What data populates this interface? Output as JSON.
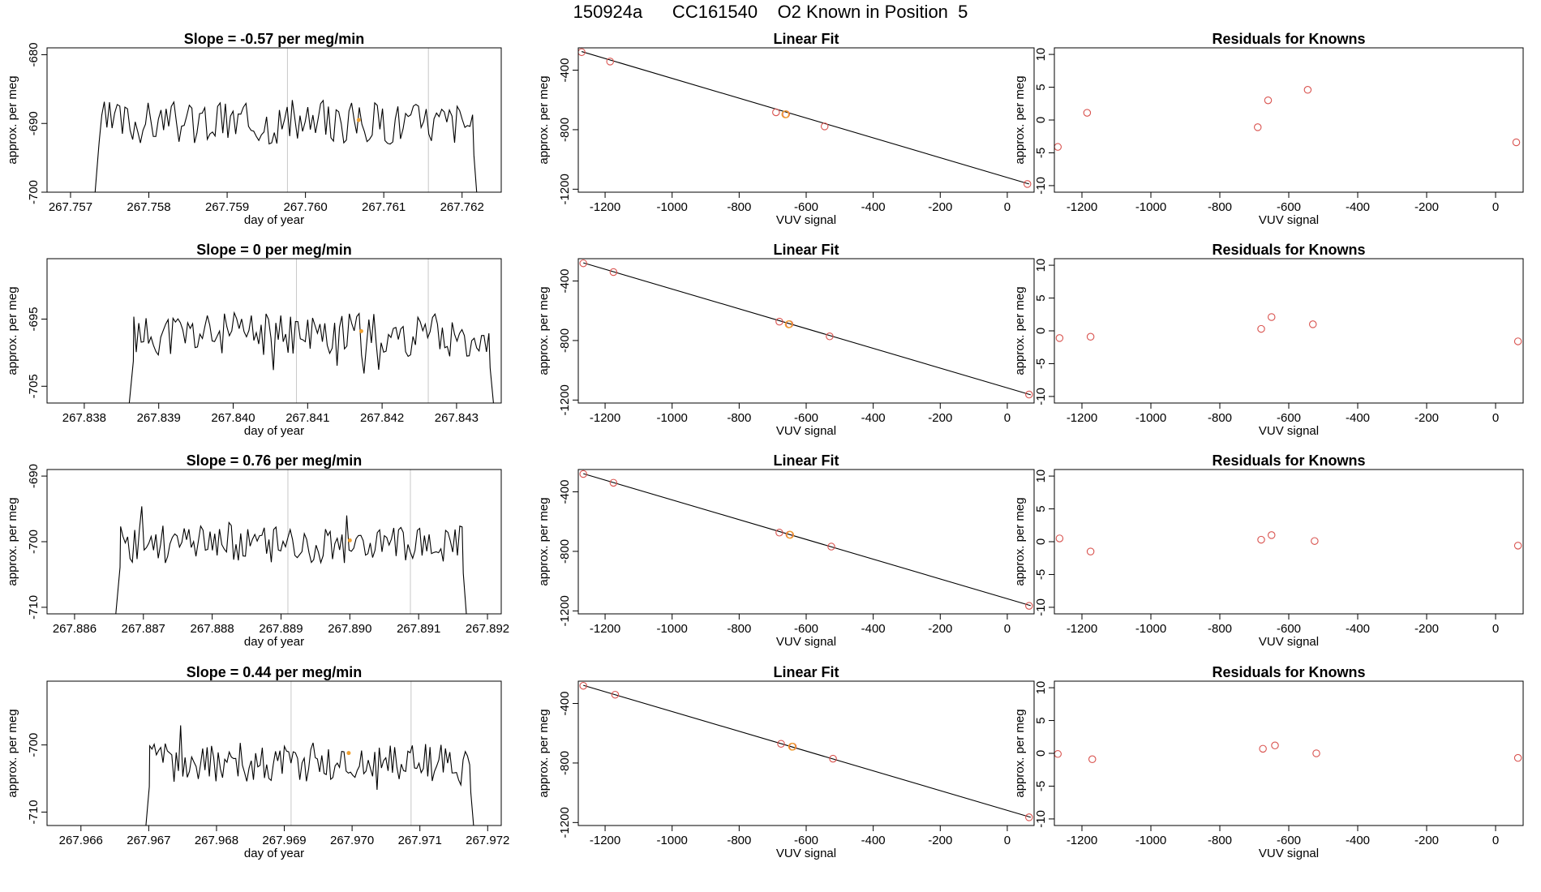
{
  "header": {
    "title": "150924a      CC161540    O2 Known in Position  5"
  },
  "colors": {
    "line": "#000000",
    "known_point": "#d9534f",
    "sample_point": "#f0a030",
    "vline": "#c8c8c8"
  },
  "chart_data": [
    {
      "type": "line",
      "row": 0,
      "col": 0,
      "title": "Slope =  -0.57  per meg/min",
      "xlabel": "day of year",
      "ylabel": "approx. per meg",
      "xlim": [
        267.7567,
        267.7625
      ],
      "ylim": [
        -700,
        -679
      ],
      "xticks": [
        267.757,
        267.758,
        267.759,
        267.76,
        267.761,
        267.762
      ],
      "xtick_labels": [
        "267.757",
        "267.758",
        "267.759",
        "267.760",
        "267.761",
        "267.762"
      ],
      "yticks": [
        -700,
        -690,
        -680
      ],
      "ytick_labels": [
        "-700",
        "-690",
        "-680"
      ],
      "series": [
        {
          "x_start": 267.7573,
          "x_end": 267.7622,
          "base": -689.8,
          "amp": 3.2,
          "seed": 3,
          "start_value": -702,
          "end_value": -702
        }
      ],
      "vlines": [
        267.75977,
        267.76157
      ],
      "highlight": {
        "x": 267.76068,
        "y": -689.5
      }
    },
    {
      "type": "scatter",
      "row": 0,
      "col": 1,
      "title": "Linear Fit",
      "xlabel": "VUV signal",
      "ylabel": "approx. per meg",
      "xlim": [
        -1280,
        80
      ],
      "ylim": [
        -1220,
        -250
      ],
      "xticks": [
        -1200,
        -1000,
        -800,
        -600,
        -400,
        -200,
        0
      ],
      "xtick_labels": [
        "-1200",
        "-1000",
        "-800",
        "-600",
        "-400",
        "-200",
        "0"
      ],
      "yticks": [
        -1200,
        -800,
        -400
      ],
      "ytick_labels": [
        "-1200",
        "-800",
        "-400"
      ],
      "fit_line": {
        "x": [
          -1270,
          65
        ],
        "y": [
          -275,
          -1165
        ]
      },
      "points": [
        {
          "x": -1270,
          "y": -279
        },
        {
          "x": -1185,
          "y": -342
        },
        {
          "x": -690,
          "y": -683
        },
        {
          "x": -660,
          "y": -696
        },
        {
          "x": -545,
          "y": -778
        },
        {
          "x": 60,
          "y": -1165
        }
      ],
      "sample_point": {
        "x": -662,
        "y": -697
      }
    },
    {
      "type": "scatter",
      "row": 0,
      "col": 2,
      "title": "Residuals for Knowns",
      "xlabel": "VUV signal",
      "ylabel": "approx. per meg",
      "xlim": [
        -1280,
        80
      ],
      "ylim": [
        -11,
        11
      ],
      "xticks": [
        -1200,
        -1000,
        -800,
        -600,
        -400,
        -200,
        0
      ],
      "xtick_labels": [
        "-1200",
        "-1000",
        "-800",
        "-600",
        "-400",
        "-200",
        "0"
      ],
      "yticks": [
        -10,
        -5,
        0,
        5,
        10
      ],
      "ytick_labels": [
        "-10",
        "-5",
        "0",
        "5",
        "10"
      ],
      "points": [
        {
          "x": -1270,
          "y": -4.1
        },
        {
          "x": -1185,
          "y": 1.1
        },
        {
          "x": -690,
          "y": -1.1
        },
        {
          "x": -660,
          "y": 3.0
        },
        {
          "x": -545,
          "y": 4.6
        },
        {
          "x": 60,
          "y": -3.4
        }
      ]
    },
    {
      "type": "line",
      "row": 1,
      "col": 0,
      "title": "Slope =  0  per meg/min",
      "xlabel": "day of year",
      "ylabel": "approx. per meg",
      "xlim": [
        267.8375,
        267.8436
      ],
      "ylim": [
        -707.5,
        -686
      ],
      "xticks": [
        267.838,
        267.839,
        267.84,
        267.841,
        267.842,
        267.843
      ],
      "xtick_labels": [
        "267.838",
        "267.839",
        "267.840",
        "267.841",
        "267.842",
        "267.843"
      ],
      "yticks": [
        -705,
        -695
      ],
      "ytick_labels": [
        "-705",
        "-695"
      ],
      "series": [
        {
          "x_start": 267.8386,
          "x_end": 267.8435,
          "base": -697.3,
          "amp": 3.3,
          "seed": 11,
          "start_value": -708,
          "end_value": -708
        }
      ],
      "vlines": [
        267.84085,
        267.84262
      ],
      "highlight": {
        "x": 267.84172,
        "y": -696.8
      }
    },
    {
      "type": "scatter",
      "row": 1,
      "col": 1,
      "title": "Linear Fit",
      "xlabel": "VUV signal",
      "ylabel": "approx. per meg",
      "xlim": [
        -1280,
        80
      ],
      "ylim": [
        -1220,
        -250
      ],
      "xticks": [
        -1200,
        -1000,
        -800,
        -600,
        -400,
        -200,
        0
      ],
      "xtick_labels": [
        "-1200",
        "-1000",
        "-800",
        "-600",
        "-400",
        "-200",
        "0"
      ],
      "yticks": [
        -1200,
        -800,
        -400
      ],
      "ytick_labels": [
        "-1200",
        "-800",
        "-400"
      ],
      "fit_line": {
        "x": [
          -1265,
          70
        ],
        "y": [
          -278,
          -1165
        ]
      },
      "points": [
        {
          "x": -1265,
          "y": -281
        },
        {
          "x": -1175,
          "y": -340
        },
        {
          "x": -680,
          "y": -673
        },
        {
          "x": -650,
          "y": -690
        },
        {
          "x": -530,
          "y": -772
        },
        {
          "x": 65,
          "y": -1163
        }
      ],
      "sample_point": {
        "x": -652,
        "y": -691
      }
    },
    {
      "type": "scatter",
      "row": 1,
      "col": 2,
      "title": "Residuals for Knowns",
      "xlabel": "VUV signal",
      "ylabel": "approx. per meg",
      "xlim": [
        -1280,
        80
      ],
      "ylim": [
        -11,
        11
      ],
      "xticks": [
        -1200,
        -1000,
        -800,
        -600,
        -400,
        -200,
        0
      ],
      "xtick_labels": [
        "-1200",
        "-1000",
        "-800",
        "-600",
        "-400",
        "-200",
        "0"
      ],
      "yticks": [
        -10,
        -5,
        0,
        5,
        10
      ],
      "ytick_labels": [
        "-10",
        "-5",
        "0",
        "5",
        "10"
      ],
      "points": [
        {
          "x": -1265,
          "y": -1.1
        },
        {
          "x": -1175,
          "y": -0.9
        },
        {
          "x": -680,
          "y": 0.3
        },
        {
          "x": -650,
          "y": 2.1
        },
        {
          "x": -530,
          "y": 1.0
        },
        {
          "x": 65,
          "y": -1.6
        }
      ]
    },
    {
      "type": "line",
      "row": 2,
      "col": 0,
      "title": "Slope =  0.76  per meg/min",
      "xlabel": "day of year",
      "ylabel": "approx. per meg",
      "xlim": [
        267.8856,
        267.8922
      ],
      "ylim": [
        -711,
        -689
      ],
      "xticks": [
        267.886,
        267.887,
        267.888,
        267.889,
        267.89,
        267.891,
        267.892
      ],
      "xtick_labels": [
        "267.886",
        "267.887",
        "267.888",
        "267.889",
        "267.890",
        "267.891",
        "267.892"
      ],
      "yticks": [
        -710,
        -700,
        -690
      ],
      "ytick_labels": [
        "-710",
        "-700",
        "-690"
      ],
      "series": [
        {
          "x_start": 267.8866,
          "x_end": 267.8917,
          "base": -700.3,
          "amp": 3.0,
          "seed": 23,
          "start_value": -711,
          "end_value": -712
        }
      ],
      "vlines": [
        267.8891,
        267.89088
      ],
      "highlight": {
        "x": 267.89,
        "y": -699.8
      }
    },
    {
      "type": "scatter",
      "row": 2,
      "col": 1,
      "title": "Linear Fit",
      "xlabel": "VUV signal",
      "ylabel": "approx. per meg",
      "xlim": [
        -1280,
        80
      ],
      "ylim": [
        -1220,
        -250
      ],
      "xticks": [
        -1200,
        -1000,
        -800,
        -600,
        -400,
        -200,
        0
      ],
      "xtick_labels": [
        "-1200",
        "-1000",
        "-800",
        "-600",
        "-400",
        "-200",
        "0"
      ],
      "yticks": [
        -1200,
        -800,
        -400
      ],
      "ytick_labels": [
        "-1200",
        "-800",
        "-400"
      ],
      "fit_line": {
        "x": [
          -1265,
          70
        ],
        "y": [
          -278,
          -1165
        ]
      },
      "points": [
        {
          "x": -1265,
          "y": -280
        },
        {
          "x": -1175,
          "y": -339
        },
        {
          "x": -680,
          "y": -674
        },
        {
          "x": -650,
          "y": -688
        },
        {
          "x": -525,
          "y": -768
        },
        {
          "x": 65,
          "y": -1166
        }
      ],
      "sample_point": {
        "x": -648,
        "y": -689
      }
    },
    {
      "type": "scatter",
      "row": 2,
      "col": 2,
      "title": "Residuals for Knowns",
      "xlabel": "VUV signal",
      "ylabel": "approx. per meg",
      "xlim": [
        -1280,
        80
      ],
      "ylim": [
        -11,
        11
      ],
      "xticks": [
        -1200,
        -1000,
        -800,
        -600,
        -400,
        -200,
        0
      ],
      "xtick_labels": [
        "-1200",
        "-1000",
        "-800",
        "-600",
        "-400",
        "-200",
        "0"
      ],
      "yticks": [
        -10,
        -5,
        0,
        5,
        10
      ],
      "ytick_labels": [
        "-10",
        "-5",
        "0",
        "5",
        "10"
      ],
      "points": [
        {
          "x": -1265,
          "y": 0.5
        },
        {
          "x": -1175,
          "y": -1.5
        },
        {
          "x": -680,
          "y": 0.3
        },
        {
          "x": -650,
          "y": 1.0
        },
        {
          "x": -525,
          "y": 0.1
        },
        {
          "x": 65,
          "y": -0.6
        }
      ]
    },
    {
      "type": "line",
      "row": 3,
      "col": 0,
      "title": "Slope =  0.44  per meg/min",
      "xlabel": "day of year",
      "ylabel": "approx. per meg",
      "xlim": [
        267.9655,
        267.9722
      ],
      "ylim": [
        -712,
        -690.5
      ],
      "xticks": [
        267.966,
        267.967,
        267.968,
        267.969,
        267.97,
        267.971,
        267.972
      ],
      "xtick_labels": [
        "267.966",
        "267.967",
        "267.968",
        "267.969",
        "267.970",
        "267.971",
        "267.972"
      ],
      "yticks": [
        -710,
        -700
      ],
      "ytick_labels": [
        "-710",
        "-700"
      ],
      "series": [
        {
          "x_start": 267.96695,
          "x_end": 267.9718,
          "base": -702.6,
          "amp": 3.0,
          "seed": 37,
          "start_value": -713,
          "end_value": -713
        }
      ],
      "vlines": [
        267.9691,
        267.97087
      ],
      "highlight": {
        "x": 267.96995,
        "y": -701.2
      }
    },
    {
      "type": "scatter",
      "row": 3,
      "col": 1,
      "title": "Linear Fit",
      "xlabel": "VUV signal",
      "ylabel": "approx. per meg",
      "xlim": [
        -1280,
        80
      ],
      "ylim": [
        -1220,
        -250
      ],
      "xticks": [
        -1200,
        -1000,
        -800,
        -600,
        -400,
        -200,
        0
      ],
      "xtick_labels": [
        "-1200",
        "-1000",
        "-800",
        "-600",
        "-400",
        "-200",
        "0"
      ],
      "yticks": [
        -1200,
        -800,
        -400
      ],
      "ytick_labels": [
        "-1200",
        "-800",
        "-400"
      ],
      "fit_line": {
        "x": [
          -1265,
          70
        ],
        "y": [
          -278,
          -1165
        ]
      },
      "points": [
        {
          "x": -1265,
          "y": -281
        },
        {
          "x": -1170,
          "y": -341
        },
        {
          "x": -675,
          "y": -671
        },
        {
          "x": -640,
          "y": -690
        },
        {
          "x": -520,
          "y": -771
        },
        {
          "x": 65,
          "y": -1165
        }
      ],
      "sample_point": {
        "x": -642,
        "y": -690
      }
    },
    {
      "type": "scatter",
      "row": 3,
      "col": 2,
      "title": "Residuals for Knowns",
      "xlabel": "VUV signal",
      "ylabel": "approx. per meg",
      "xlim": [
        -1280,
        80
      ],
      "ylim": [
        -11,
        11
      ],
      "xticks": [
        -1200,
        -1000,
        -800,
        -600,
        -400,
        -200,
        0
      ],
      "xtick_labels": [
        "-1200",
        "-1000",
        "-800",
        "-600",
        "-400",
        "-200",
        "0"
      ],
      "yticks": [
        -10,
        -5,
        0,
        5,
        10
      ],
      "ytick_labels": [
        "-10",
        "-5",
        "0",
        "5",
        "10"
      ],
      "points": [
        {
          "x": -1270,
          "y": -0.1
        },
        {
          "x": -1170,
          "y": -0.9
        },
        {
          "x": -675,
          "y": 0.7
        },
        {
          "x": -640,
          "y": 1.2
        },
        {
          "x": -520,
          "y": 0.0
        },
        {
          "x": 65,
          "y": -0.7
        }
      ]
    }
  ]
}
